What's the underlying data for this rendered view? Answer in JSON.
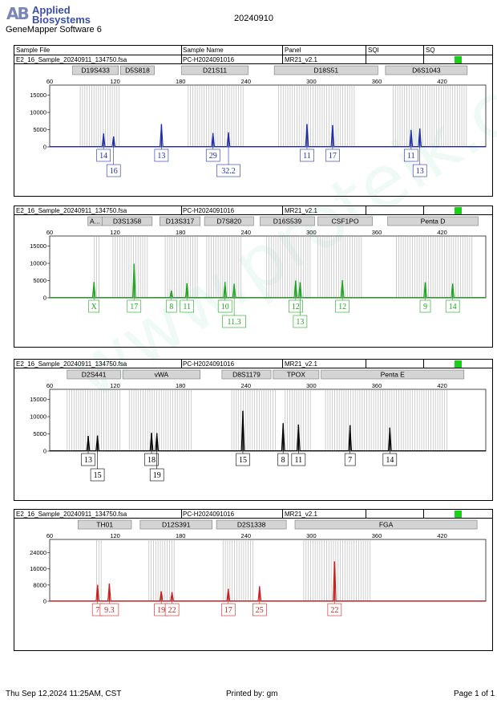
{
  "header": {
    "logo_mark": "AB",
    "logo_line1": "Applied",
    "logo_line2": "Biosystems",
    "software": "GeneMapper Software 6",
    "date": "20240910"
  },
  "columns": {
    "sample_file": "Sample File",
    "sample_name": "Sample Name",
    "panel": "Panel",
    "sqi": "SQI",
    "sq": "SQ"
  },
  "footer": {
    "timestamp": "Thu Sep 12,2024 11:25AM, CST",
    "printed_by": "Printed by: gm",
    "page": "Page 1 of 1"
  },
  "watermark": "www.proteik.com.cn",
  "colors": {
    "blue": "#1f2ea8",
    "green": "#1da51d",
    "black": "#000000",
    "red": "#c81e1e",
    "status": "#18d018",
    "bins": "#c8c8c8",
    "marker_box": "#d4d4d4"
  },
  "chart_data": [
    {
      "type": "line",
      "dye": "blue",
      "sample_file": "E2_16_Sample_20240911_134750.fsa",
      "sample_name": "PC-H2024091016",
      "panel": "MR21_v2.1",
      "xlim": [
        60,
        460
      ],
      "ylim": [
        0,
        17000
      ],
      "x_ticks": [
        60,
        120,
        180,
        240,
        300,
        360,
        420
      ],
      "y_ticks": [
        0,
        5000,
        10000,
        15000
      ],
      "markers": [
        {
          "name": "D19S433",
          "start": 81,
          "end": 123
        },
        {
          "name": "D5S818",
          "start": 125,
          "end": 156
        },
        {
          "name": "D21S11",
          "start": 181,
          "end": 242
        },
        {
          "name": "D18S51",
          "start": 266,
          "end": 361
        },
        {
          "name": "D6S1043",
          "start": 368,
          "end": 443
        }
      ],
      "bins": [
        [
          88,
          125
        ],
        [
          187,
          239
        ],
        [
          270,
          340
        ],
        [
          375,
          444
        ]
      ],
      "peaks": [
        {
          "x": 109.4,
          "y": 3900,
          "allele": "14",
          "row": 1
        },
        {
          "x": 118.6,
          "y": 3000,
          "allele": "16",
          "row": 2
        },
        {
          "x": 162.5,
          "y": 6600,
          "allele": "13",
          "row": 1
        },
        {
          "x": 209.8,
          "y": 4000,
          "allele": "29",
          "row": 1
        },
        {
          "x": 224,
          "y": 4200,
          "allele": "32.2",
          "row": 2
        },
        {
          "x": 296,
          "y": 6600,
          "allele": "11",
          "row": 1
        },
        {
          "x": 319.5,
          "y": 6300,
          "allele": "17",
          "row": 1
        },
        {
          "x": 391.5,
          "y": 4900,
          "allele": "11",
          "row": 1
        },
        {
          "x": 399.5,
          "y": 5300,
          "allele": "13",
          "row": 2
        }
      ]
    },
    {
      "type": "line",
      "dye": "green",
      "sample_file": "E2_16_Sample_20240911_134750.fsa",
      "sample_name": "PC-H2024091016",
      "panel": "MR21_v2.1",
      "xlim": [
        60,
        460
      ],
      "ylim": [
        0,
        17000
      ],
      "x_ticks": [
        60,
        120,
        180,
        240,
        300,
        360,
        420
      ],
      "y_ticks": [
        0,
        5000,
        10000,
        15000
      ],
      "markers": [
        {
          "name": "A...",
          "start": 95,
          "end": 108
        },
        {
          "name": "D3S1358",
          "start": 108,
          "end": 154
        },
        {
          "name": "D13S317",
          "start": 161,
          "end": 198
        },
        {
          "name": "D7S820",
          "start": 202,
          "end": 247
        },
        {
          "name": "D16S539",
          "start": 253,
          "end": 303
        },
        {
          "name": "CSF1PO",
          "start": 306,
          "end": 356
        },
        {
          "name": "Penta D",
          "start": 370,
          "end": 453
        }
      ],
      "bins": [
        [
          101,
          107
        ],
        [
          118,
          150
        ],
        [
          166,
          197
        ],
        [
          204,
          237
        ],
        [
          259,
          300
        ],
        [
          306,
          348
        ],
        [
          378,
          448
        ]
      ],
      "peaks": [
        {
          "x": 100.6,
          "y": 4600,
          "allele": "X",
          "row": 1
        },
        {
          "x": 137.4,
          "y": 9900,
          "allele": "17",
          "row": 1
        },
        {
          "x": 171.6,
          "y": 2100,
          "allele": "8",
          "row": 1
        },
        {
          "x": 185.9,
          "y": 4200,
          "allele": "11",
          "row": 1
        },
        {
          "x": 220.8,
          "y": 4600,
          "allele": "10",
          "row": 1
        },
        {
          "x": 229.2,
          "y": 4100,
          "allele": "11.3",
          "row": 2
        },
        {
          "x": 285.6,
          "y": 5000,
          "allele": "12",
          "row": 1
        },
        {
          "x": 289.7,
          "y": 4500,
          "allele": "13",
          "row": 2
        },
        {
          "x": 328.5,
          "y": 5100,
          "allele": "12",
          "row": 1
        },
        {
          "x": 404.5,
          "y": 4500,
          "allele": "9",
          "row": 1
        },
        {
          "x": 429.6,
          "y": 4100,
          "allele": "14",
          "row": 1
        }
      ]
    },
    {
      "type": "line",
      "dye": "black",
      "sample_file": "E2_16_Sample_20240911_134750.fsa",
      "sample_name": "PC-H2024091016",
      "panel": "MR21_v2.1",
      "xlim": [
        60,
        460
      ],
      "ylim": [
        0,
        17000
      ],
      "x_ticks": [
        60,
        120,
        180,
        240,
        300,
        360,
        420
      ],
      "y_ticks": [
        0,
        5000,
        10000,
        15000
      ],
      "markers": [
        {
          "name": "D2S441",
          "start": 76,
          "end": 125
        },
        {
          "name": "vWA",
          "start": 127,
          "end": 198
        },
        {
          "name": "D8S1179",
          "start": 218,
          "end": 263
        },
        {
          "name": "TPOX",
          "start": 265,
          "end": 307
        },
        {
          "name": "Penta E",
          "start": 309,
          "end": 440
        }
      ],
      "bins": [
        [
          76,
          126
        ],
        [
          133,
          190
        ],
        [
          227,
          269
        ],
        [
          276,
          300
        ],
        [
          313,
          425
        ]
      ],
      "peaks": [
        {
          "x": 95.3,
          "y": 4400,
          "allele": "13",
          "row": 1
        },
        {
          "x": 103.8,
          "y": 4500,
          "allele": "15",
          "row": 2
        },
        {
          "x": 153.4,
          "y": 5300,
          "allele": "18",
          "row": 1
        },
        {
          "x": 158.3,
          "y": 5200,
          "allele": "19",
          "row": 2
        },
        {
          "x": 237.2,
          "y": 11700,
          "allele": "15",
          "row": 1
        },
        {
          "x": 274.1,
          "y": 8100,
          "allele": "8",
          "row": 1
        },
        {
          "x": 288.2,
          "y": 7700,
          "allele": "11",
          "row": 1
        },
        {
          "x": 335.5,
          "y": 7500,
          "allele": "7",
          "row": 1
        },
        {
          "x": 372,
          "y": 6800,
          "allele": "14",
          "row": 1
        }
      ]
    },
    {
      "type": "line",
      "dye": "red",
      "sample_file": "E2_16_Sample_20240911_134750.fsa",
      "sample_name": "PC-H2024091016",
      "panel": "MR21_v2.1",
      "xlim": [
        60,
        460
      ],
      "ylim": [
        0,
        29000
      ],
      "x_ticks": [
        60,
        120,
        180,
        240,
        300,
        360,
        420
      ],
      "y_ticks": [
        0,
        8000,
        16000,
        24000
      ],
      "markers": [
        {
          "name": "TH01",
          "start": 86,
          "end": 135
        },
        {
          "name": "D12S391",
          "start": 143,
          "end": 209
        },
        {
          "name": "D2S1338",
          "start": 213,
          "end": 277
        },
        {
          "name": "FGA",
          "start": 285,
          "end": 452
        }
      ],
      "bins": [
        [
          103,
          108
        ],
        [
          151,
          176
        ],
        [
          219,
          247
        ],
        [
          293,
          355
        ]
      ],
      "peaks": [
        {
          "x": 103.9,
          "y": 8100,
          "allele": "7",
          "row": 1
        },
        {
          "x": 114.7,
          "y": 8700,
          "allele": "9.3",
          "row": 1
        },
        {
          "x": 162.3,
          "y": 4900,
          "allele": "19",
          "row": 1
        },
        {
          "x": 172.2,
          "y": 4500,
          "allele": "22",
          "row": 1
        },
        {
          "x": 223.8,
          "y": 6100,
          "allele": "17",
          "row": 1
        },
        {
          "x": 252.5,
          "y": 7400,
          "allele": "25",
          "row": 1
        },
        {
          "x": 321.3,
          "y": 19700,
          "allele": "22",
          "row": 1
        }
      ]
    }
  ]
}
